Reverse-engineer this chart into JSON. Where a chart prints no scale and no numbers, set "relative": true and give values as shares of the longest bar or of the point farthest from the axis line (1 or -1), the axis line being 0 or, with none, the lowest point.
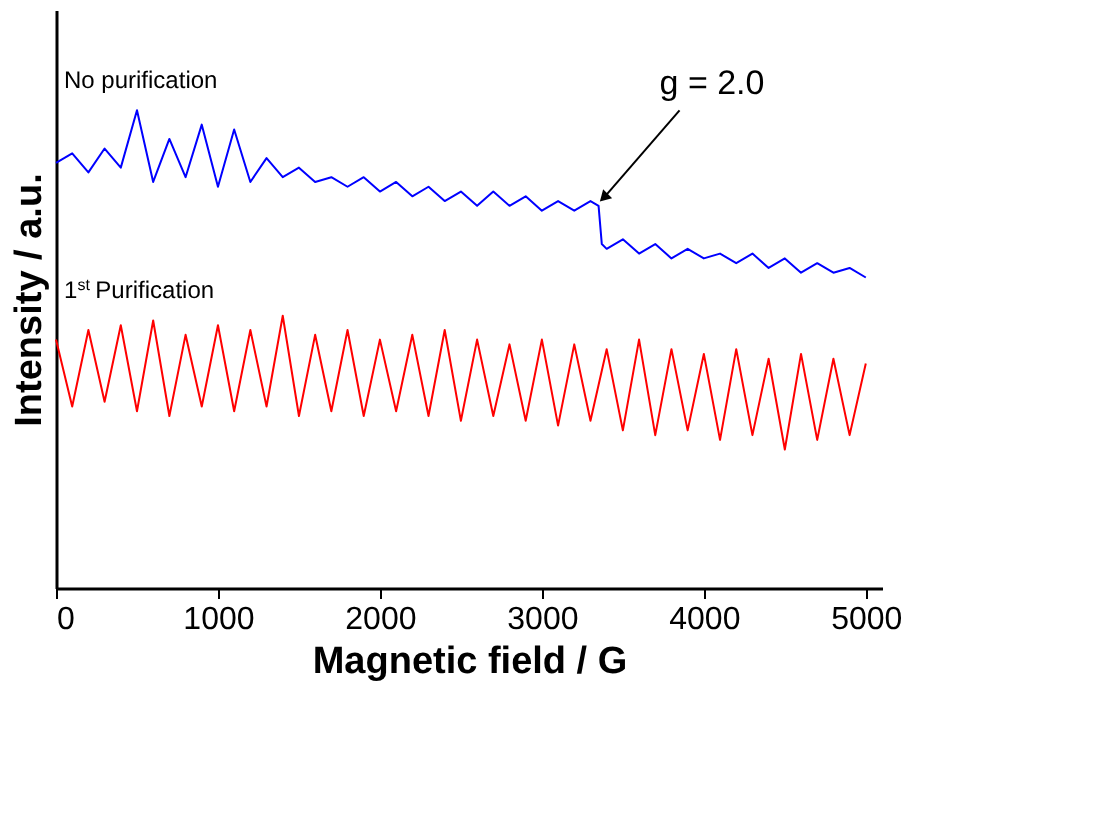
{
  "chart_data": {
    "type": "line",
    "xlabel": "Magnetic field / G",
    "ylabel": "Intensity / a.u.",
    "relative": true,
    "xlim": [
      0,
      5100
    ],
    "xticks": [
      0,
      1000,
      2000,
      3000,
      4000,
      5000
    ],
    "grid": false,
    "legend": false,
    "marker": "none",
    "line_style": "solid",
    "series": [
      {
        "name": "No purification",
        "color": "#0000ff",
        "x": [
          0,
          100,
          200,
          300,
          400,
          500,
          600,
          700,
          800,
          900,
          1000,
          1100,
          1200,
          1300,
          1400,
          1500,
          1600,
          1700,
          1800,
          1900,
          2000,
          2100,
          2200,
          2300,
          2400,
          2500,
          2600,
          2700,
          2800,
          2900,
          3000,
          3100,
          3200,
          3300,
          3350,
          3370,
          3400,
          3500,
          3600,
          3700,
          3800,
          3900,
          4000,
          4100,
          4200,
          4300,
          4400,
          4500,
          4600,
          4700,
          4800,
          4900,
          5000
        ],
        "values": [
          0.89,
          0.91,
          0.87,
          0.92,
          0.88,
          1.0,
          0.85,
          0.94,
          0.86,
          0.97,
          0.84,
          0.96,
          0.85,
          0.9,
          0.86,
          0.88,
          0.85,
          0.86,
          0.84,
          0.86,
          0.83,
          0.85,
          0.82,
          0.84,
          0.81,
          0.83,
          0.8,
          0.83,
          0.8,
          0.82,
          0.79,
          0.81,
          0.79,
          0.81,
          0.8,
          0.72,
          0.71,
          0.73,
          0.7,
          0.72,
          0.69,
          0.71,
          0.69,
          0.7,
          0.68,
          0.7,
          0.67,
          0.69,
          0.66,
          0.68,
          0.66,
          0.67,
          0.65
        ]
      },
      {
        "name": "1$^{st}$ Purification",
        "color": "#ff0000",
        "x": [
          0,
          100,
          200,
          300,
          400,
          500,
          600,
          700,
          800,
          900,
          1000,
          1100,
          1200,
          1300,
          1400,
          1500,
          1600,
          1700,
          1800,
          1900,
          2000,
          2100,
          2200,
          2300,
          2400,
          2500,
          2600,
          2700,
          2800,
          2900,
          3000,
          3100,
          3200,
          3300,
          3400,
          3500,
          3600,
          3700,
          3800,
          3900,
          4000,
          4100,
          4200,
          4300,
          4400,
          4500,
          4600,
          4700,
          4800,
          4900,
          5000
        ],
        "values": [
          0.52,
          0.38,
          0.54,
          0.39,
          0.55,
          0.37,
          0.56,
          0.36,
          0.53,
          0.38,
          0.55,
          0.37,
          0.54,
          0.38,
          0.57,
          0.36,
          0.53,
          0.37,
          0.54,
          0.36,
          0.52,
          0.37,
          0.53,
          0.36,
          0.54,
          0.35,
          0.52,
          0.36,
          0.51,
          0.35,
          0.52,
          0.34,
          0.51,
          0.35,
          0.5,
          0.33,
          0.52,
          0.32,
          0.5,
          0.33,
          0.49,
          0.31,
          0.5,
          0.32,
          0.48,
          0.29,
          0.49,
          0.31,
          0.48,
          0.32,
          0.47
        ]
      }
    ],
    "annotations": [
      {
        "text": "g = 2.0",
        "x": 3350,
        "y": 0.8
      }
    ]
  }
}
